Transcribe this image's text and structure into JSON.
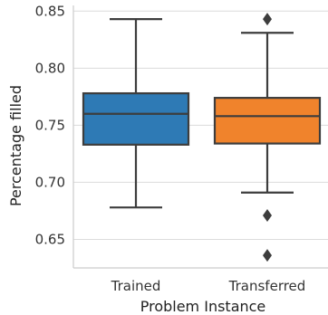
{
  "chart_data": {
    "type": "box",
    "xlabel": "Problem Instance",
    "ylabel": "Percentage filled",
    "ylim": [
      0.625,
      0.855
    ],
    "yticks": [
      {
        "value": 0.65,
        "label": "0.65"
      },
      {
        "value": 0.7,
        "label": "0.70"
      },
      {
        "value": 0.75,
        "label": "0.75"
      },
      {
        "value": 0.8,
        "label": "0.80"
      },
      {
        "value": 0.85,
        "label": "0.85"
      }
    ],
    "grid": "horizontal",
    "categories": [
      "Trained",
      "Transferred"
    ],
    "boxes": [
      {
        "category": "Trained",
        "color": "#2e7ab5",
        "whisker_low": 0.678,
        "q1": 0.733,
        "median": 0.76,
        "q3": 0.778,
        "whisker_high": 0.843,
        "outliers": []
      },
      {
        "category": "Transferred",
        "color": "#f0832c",
        "whisker_low": 0.691,
        "q1": 0.734,
        "median": 0.758,
        "q3": 0.774,
        "whisker_high": 0.831,
        "outliers": [
          0.843,
          0.671,
          0.636
        ]
      }
    ],
    "line_color": "#3d3d3d"
  }
}
